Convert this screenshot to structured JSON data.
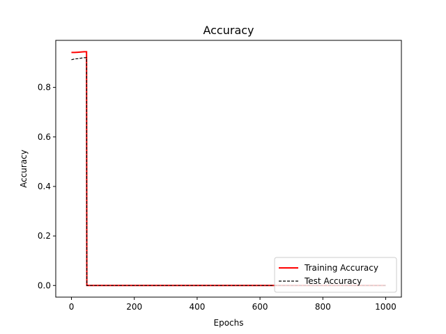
{
  "chart_data": {
    "type": "line",
    "title": "Accuracy",
    "xlabel": "Epochs",
    "ylabel": "Accuracy",
    "xlim": [
      -50,
      1050
    ],
    "ylim": [
      -0.047,
      0.99
    ],
    "xticks": [
      0,
      200,
      400,
      600,
      800,
      1000
    ],
    "yticks": [
      0.0,
      0.2,
      0.4,
      0.6,
      0.8
    ],
    "xtick_labels": [
      "0",
      "200",
      "400",
      "600",
      "800",
      "1000"
    ],
    "ytick_labels": [
      "0.0",
      "0.2",
      "0.4",
      "0.6",
      "0.8"
    ],
    "grid": false,
    "legend_position": "lower-right",
    "series": [
      {
        "name": "Training Accuracy",
        "color": "#ff0000",
        "style": "solid",
        "x": [
          0,
          10,
          20,
          30,
          40,
          45,
          48,
          49,
          50,
          1000
        ],
        "y": [
          0.941,
          0.941,
          0.942,
          0.943,
          0.944,
          0.944,
          0.944,
          0.0,
          0.0,
          0.0
        ]
      },
      {
        "name": "Test Accuracy",
        "color": "#000000",
        "style": "dashed",
        "x": [
          0,
          10,
          20,
          30,
          40,
          45,
          48,
          49,
          50,
          1000
        ],
        "y": [
          0.912,
          0.915,
          0.916,
          0.918,
          0.92,
          0.92,
          0.92,
          0.0,
          0.0,
          0.0
        ]
      }
    ]
  }
}
